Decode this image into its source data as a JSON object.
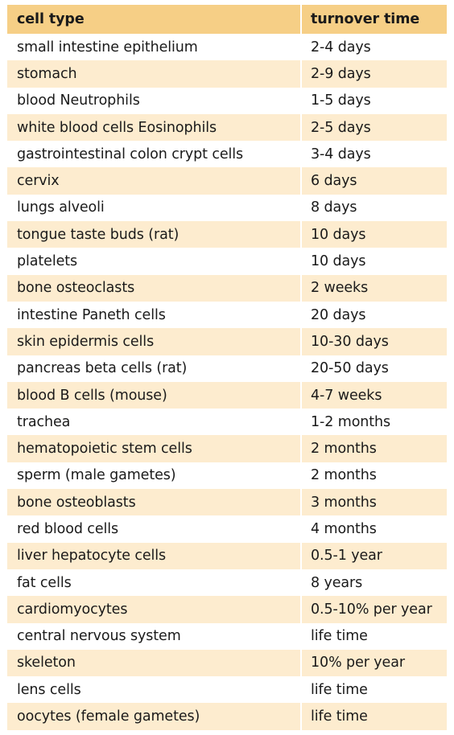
{
  "table": {
    "headers": {
      "cell_type": "cell type",
      "turnover_time": "turnover time"
    },
    "rows": [
      [
        "small intestine epithelium",
        "2-4 days"
      ],
      [
        "stomach",
        "2-9 days"
      ],
      [
        "blood Neutrophils",
        "1-5 days"
      ],
      [
        "white blood cells Eosinophils",
        "2-5 days"
      ],
      [
        "gastrointestinal colon crypt cells",
        "3-4 days"
      ],
      [
        "cervix",
        "6 days"
      ],
      [
        "lungs alveoli",
        "8 days"
      ],
      [
        "tongue taste buds (rat)",
        "10 days"
      ],
      [
        "platelets",
        "10 days"
      ],
      [
        "bone osteoclasts",
        "2 weeks"
      ],
      [
        "intestine Paneth cells",
        "20 days"
      ],
      [
        "skin epidermis cells",
        "10-30 days"
      ],
      [
        "pancreas beta cells (rat)",
        "20-50 days"
      ],
      [
        "blood B cells (mouse)",
        "4-7 weeks"
      ],
      [
        "trachea",
        "1-2 months"
      ],
      [
        "hematopoietic stem cells",
        "2 months"
      ],
      [
        "sperm (male gametes)",
        "2 months"
      ],
      [
        "bone osteoblasts",
        "3 months"
      ],
      [
        "red blood cells",
        "4 months"
      ],
      [
        "liver hepatocyte cells",
        "0.5-1 year"
      ],
      [
        "fat cells",
        "8 years"
      ],
      [
        "cardiomyocytes",
        "0.5-10% per year"
      ],
      [
        "central nervous system",
        "life time"
      ],
      [
        "skeleton",
        "10% per year"
      ],
      [
        "lens cells",
        "life time"
      ],
      [
        "oocytes (female gametes)",
        "life time"
      ]
    ]
  },
  "colors": {
    "header_bg": "#f6cf86",
    "shaded_row_bg": "#fdeccf",
    "plain_row_bg": "#ffffff",
    "text": "#1a1a1a"
  }
}
